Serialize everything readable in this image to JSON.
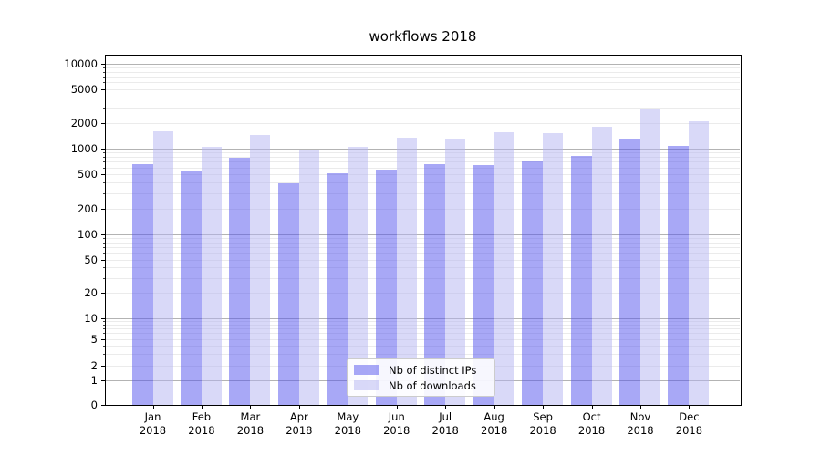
{
  "title": "workflows 2018",
  "chart_data": {
    "type": "bar",
    "title": "workflows 2018",
    "categories": [
      "Jan",
      "Feb",
      "Mar",
      "Apr",
      "May",
      "Jun",
      "Jul",
      "Aug",
      "Sep",
      "Oct",
      "Nov",
      "Dec"
    ],
    "category_year": "2018",
    "series": [
      {
        "name": "Nb of distinct IPs",
        "fill": "rgba(81,81,237,0.5)",
        "solid_hex": "#a8a8f6",
        "values": [
          650,
          535,
          790,
          390,
          515,
          565,
          650,
          640,
          715,
          830,
          1305,
          1070
        ]
      },
      {
        "name": "Nb of downloads",
        "fill": "rgba(179,179,241,0.5)",
        "solid_hex": "#d9d9f8",
        "values": [
          1610,
          1050,
          1460,
          940,
          1040,
          1330,
          1320,
          1580,
          1520,
          1830,
          2970,
          2090
        ]
      }
    ],
    "yticks": [
      0,
      1,
      2,
      5,
      10,
      20,
      50,
      100,
      200,
      500,
      1000,
      2000,
      5000,
      10000
    ],
    "yscale": "log-with-zero",
    "ylim": [
      0,
      12000
    ],
    "grid": true,
    "legend_position": "bottom-center"
  },
  "legend": {
    "items": [
      {
        "label": "Nb of distinct IPs"
      },
      {
        "label": "Nb of downloads"
      }
    ]
  }
}
